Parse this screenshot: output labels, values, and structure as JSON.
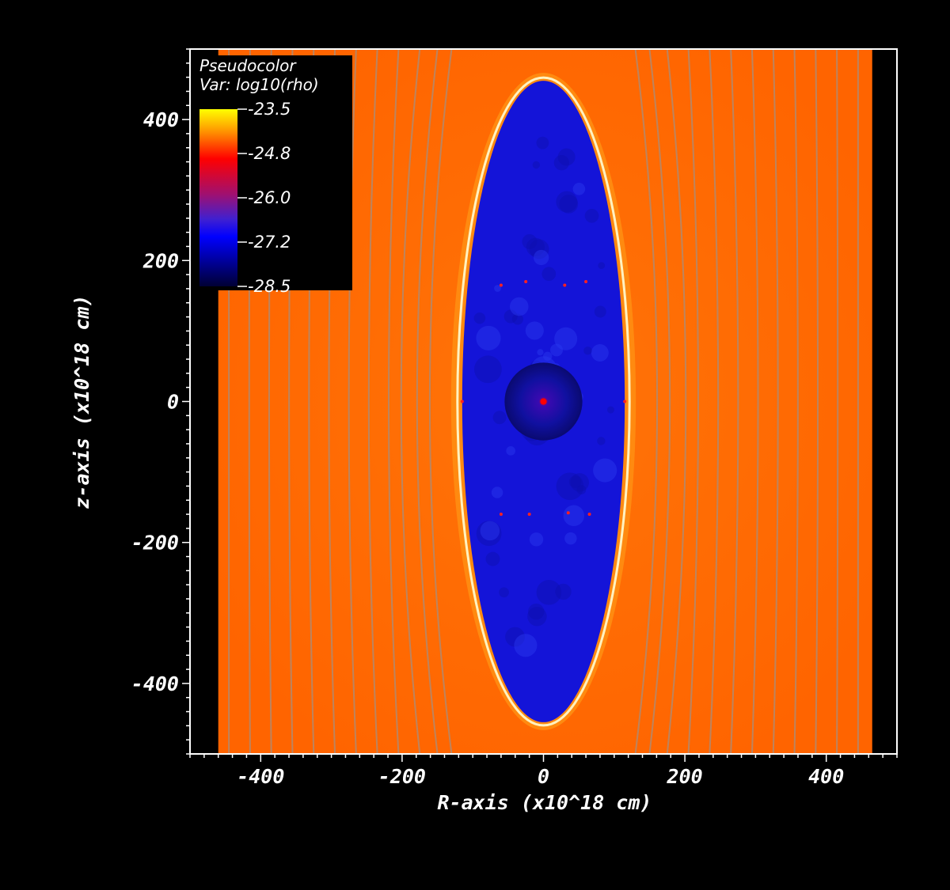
{
  "chart_data": {
    "type": "heatmap",
    "title": "",
    "xlabel": "R-axis (x10^18 cm)",
    "ylabel": "z-axis (x10^18 cm)",
    "xlim": [
      -500,
      500
    ],
    "ylim": [
      -500,
      500
    ],
    "x_ticks": [
      -400,
      -200,
      0,
      200,
      400
    ],
    "y_ticks": [
      400,
      200,
      0,
      -200,
      -400
    ],
    "data_extent": {
      "x": [
        -460,
        465
      ],
      "y": [
        -500,
        500
      ]
    },
    "legend": {
      "title_line1": "Pseudocolor",
      "title_line2": "Var: log10(rho)",
      "ticks": [
        "-23.5",
        "-24.8",
        "-26.0",
        "-27.2",
        "-28.5"
      ],
      "placement": "top-left"
    },
    "colormap": [
      "#ffff00",
      "#ff9900",
      "#ff0000",
      "#a01070",
      "#4020d0",
      "#0000ff",
      "#000033"
    ],
    "ambient_color": "#ff6a00",
    "cavity": {
      "color": "#1414d8",
      "center": [
        0,
        0
      ],
      "semi_axis_r": 115,
      "semi_axis_z": 455,
      "shell_color": "#ffffff"
    },
    "core": {
      "radius": 55,
      "color": "#0a0a8c",
      "center_color": "#ff0000"
    },
    "field_lines": {
      "color": "#b08a70",
      "r_positions": [
        -445,
        -415,
        -385,
        -355,
        -325,
        -295,
        -265,
        -235,
        -205,
        -175,
        -150,
        -130,
        130,
        150,
        175,
        205,
        235,
        265,
        295,
        325,
        355,
        385,
        415,
        445
      ]
    }
  }
}
